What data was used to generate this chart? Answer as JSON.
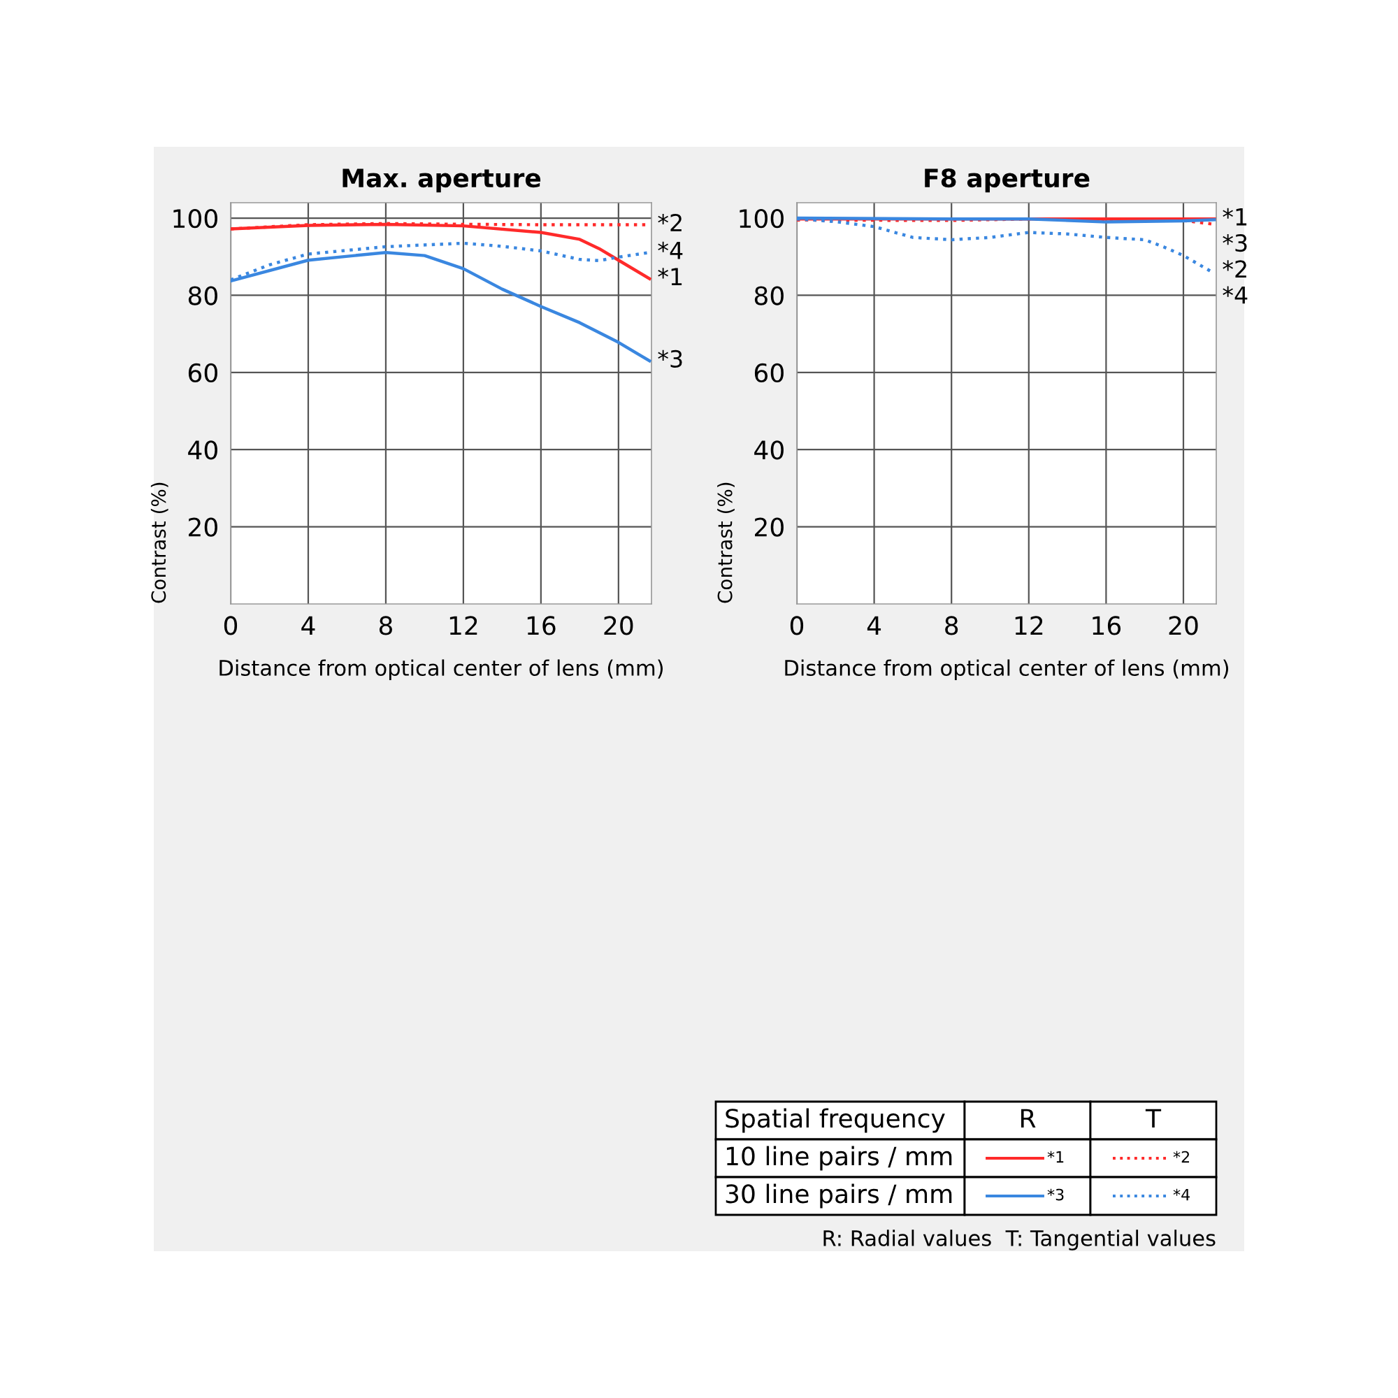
{
  "chart_data": [
    {
      "type": "line",
      "title": "Max. aperture",
      "xlabel": "Distance from optical center of lens (mm)",
      "ylabel": "Contrast (%)",
      "xlim": [
        0,
        21.7
      ],
      "ylim": [
        0,
        104
      ],
      "xticks": [
        0,
        4,
        8,
        12,
        16,
        20
      ],
      "yticks": [
        20,
        40,
        60,
        80,
        100
      ],
      "grid": true,
      "legend": false,
      "marker": "none",
      "series": [
        {
          "name": "*1",
          "color": "#ff2a2a",
          "line_style": "solid",
          "x": [
            0,
            4,
            8,
            12,
            16,
            18,
            19,
            20,
            21.6
          ],
          "values": [
            97.2,
            98.1,
            98.4,
            98.0,
            96.3,
            94.5,
            92.1,
            89.1,
            84.3
          ]
        },
        {
          "name": "*2",
          "color": "#ff2a2a",
          "line_style": "dotted",
          "x": [
            0,
            4,
            8,
            12,
            16,
            21.6
          ],
          "values": [
            97.2,
            98.3,
            98.6,
            98.4,
            98.3,
            98.3
          ]
        },
        {
          "name": "*3",
          "color": "#3a87e0",
          "line_style": "solid",
          "x": [
            0,
            4,
            8,
            10,
            12,
            14,
            16,
            18,
            20,
            21.6
          ],
          "values": [
            83.7,
            89.1,
            91.1,
            90.3,
            86.9,
            81.6,
            77.1,
            72.9,
            67.8,
            63.0
          ]
        },
        {
          "name": "*4",
          "color": "#3a87e0",
          "line_style": "dotted",
          "x": [
            0,
            2,
            4,
            8,
            12,
            14,
            16,
            18,
            19,
            20,
            21.6
          ],
          "values": [
            84.0,
            87.9,
            90.7,
            92.6,
            93.5,
            92.7,
            91.5,
            89.3,
            89.0,
            89.9,
            91.1
          ]
        }
      ]
    },
    {
      "type": "line",
      "title": "F8 aperture",
      "xlabel": "Distance from optical center of lens (mm)",
      "ylabel": "Contrast (%)",
      "xlim": [
        0,
        21.7
      ],
      "ylim": [
        0,
        104
      ],
      "xticks": [
        0,
        4,
        8,
        12,
        16,
        20
      ],
      "yticks": [
        20,
        40,
        60,
        80,
        100
      ],
      "grid": true,
      "legend": "bottom right",
      "marker": "none",
      "series": [
        {
          "name": "*1",
          "color": "#ff2a2a",
          "line_style": "solid",
          "x": [
            0,
            8,
            12,
            16,
            20,
            21.6
          ],
          "values": [
            99.8,
            99.8,
            99.8,
            99.8,
            99.8,
            99.8
          ]
        },
        {
          "name": "*2",
          "color": "#ff2a2a",
          "line_style": "dotted",
          "x": [
            0,
            8,
            12,
            16,
            20,
            21.6
          ],
          "values": [
            99.5,
            99.4,
            99.8,
            99.6,
            99.4,
            98.4
          ]
        },
        {
          "name": "*3",
          "color": "#3a87e0",
          "line_style": "solid",
          "x": [
            0,
            8,
            12,
            16,
            20,
            21.6
          ],
          "values": [
            100,
            99.8,
            99.8,
            99.0,
            99.3,
            99.6
          ]
        },
        {
          "name": "*4",
          "color": "#3a87e0",
          "line_style": "dotted",
          "x": [
            0,
            2,
            4,
            6,
            8,
            10,
            12,
            14,
            16,
            18,
            19,
            20,
            21.6
          ],
          "values": [
            99.8,
            99.1,
            97.8,
            95.0,
            94.4,
            95.0,
            96.3,
            95.9,
            95.0,
            94.4,
            92.5,
            90.3,
            85.7
          ]
        }
      ],
      "annotations": [
        "Spatial frequency",
        "R",
        "T",
        "10 line pairs / mm",
        "30 line pairs / mm",
        "R: Radial values  T: Tangential values"
      ]
    }
  ]
}
